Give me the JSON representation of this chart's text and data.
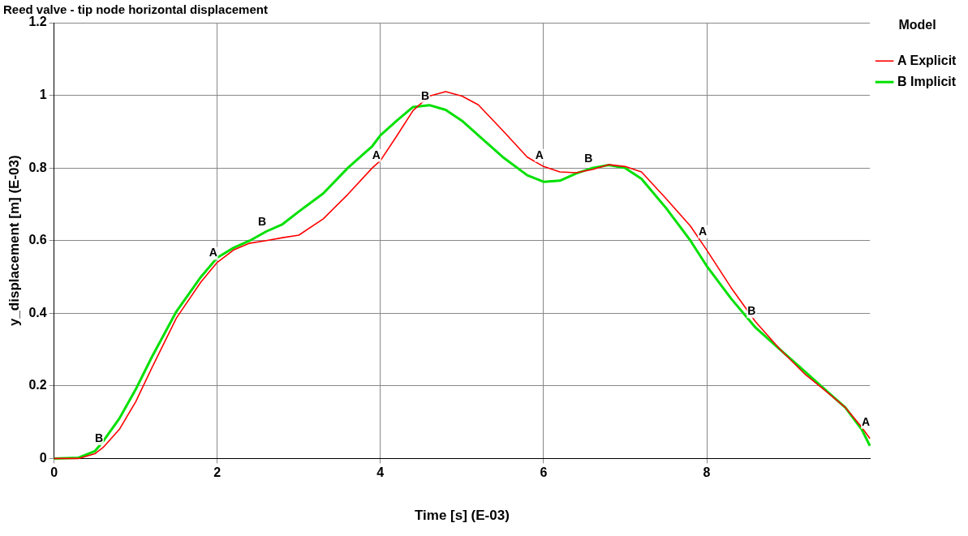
{
  "chart_data": {
    "type": "line",
    "title": "Reed valve - tip node horizontal displacement",
    "xlabel": "Time [s] (E-03)",
    "ylabel": "y_displacement [m] (E-03)",
    "legend_title": "Model",
    "x": [
      0,
      0.3,
      0.5,
      0.6,
      0.8,
      1.0,
      1.2,
      1.5,
      1.8,
      2.0,
      2.2,
      2.4,
      2.6,
      2.8,
      3.0,
      3.3,
      3.6,
      3.9,
      4.0,
      4.2,
      4.4,
      4.6,
      4.8,
      5.0,
      5.2,
      5.5,
      5.8,
      6.0,
      6.2,
      6.4,
      6.6,
      6.8,
      7.0,
      7.2,
      7.5,
      7.8,
      8.0,
      8.3,
      8.6,
      8.9,
      9.2,
      9.5,
      9.7,
      9.9,
      10.0
    ],
    "series": [
      {
        "name": "A Explicit",
        "color": "#ff0000",
        "values": [
          0,
          0,
          0.013,
          0.03,
          0.08,
          0.156,
          0.25,
          0.387,
          0.486,
          0.54,
          0.574,
          0.593,
          0.6,
          0.608,
          0.615,
          0.66,
          0.727,
          0.8,
          0.82,
          0.888,
          0.958,
          0.998,
          1.01,
          0.998,
          0.974,
          0.903,
          0.83,
          0.804,
          0.789,
          0.787,
          0.796,
          0.809,
          0.804,
          0.789,
          0.716,
          0.64,
          0.574,
          0.47,
          0.376,
          0.3,
          0.233,
          0.178,
          0.14,
          0.086,
          0.055
        ]
      },
      {
        "name": "B Implicit",
        "color": "#00e000",
        "values": [
          0,
          0.002,
          0.02,
          0.047,
          0.11,
          0.19,
          0.28,
          0.405,
          0.5,
          0.553,
          0.58,
          0.6,
          0.625,
          0.645,
          0.68,
          0.73,
          0.8,
          0.86,
          0.89,
          0.93,
          0.968,
          0.973,
          0.96,
          0.93,
          0.89,
          0.83,
          0.78,
          0.762,
          0.765,
          0.785,
          0.8,
          0.808,
          0.8,
          0.77,
          0.69,
          0.6,
          0.53,
          0.44,
          0.36,
          0.3,
          0.24,
          0.18,
          0.14,
          0.08,
          0.035
        ]
      }
    ],
    "xlim": [
      0,
      10
    ],
    "xticks": [
      0,
      2,
      4,
      6,
      8
    ],
    "ylim": [
      0,
      1.2
    ],
    "yticks": [
      0,
      0.2,
      0.4,
      0.6,
      0.8,
      1,
      1.2
    ],
    "grid": true,
    "legend": "top right",
    "marker": "none",
    "line_style": "solid",
    "annotations": [
      {
        "text": "B",
        "x": 0.55,
        "y": 0.03
      },
      {
        "text": "A",
        "x": 1.95,
        "y": 0.54
      },
      {
        "text": "B",
        "x": 2.55,
        "y": 0.625
      },
      {
        "text": "A",
        "x": 3.95,
        "y": 0.81
      },
      {
        "text": "B",
        "x": 4.55,
        "y": 0.973
      },
      {
        "text": "A",
        "x": 5.95,
        "y": 0.81
      },
      {
        "text": "B",
        "x": 6.55,
        "y": 0.8
      },
      {
        "text": "A",
        "x": 7.95,
        "y": 0.6
      },
      {
        "text": "B",
        "x": 8.55,
        "y": 0.38
      },
      {
        "text": "A",
        "x": 9.95,
        "y": 0.075
      }
    ]
  }
}
